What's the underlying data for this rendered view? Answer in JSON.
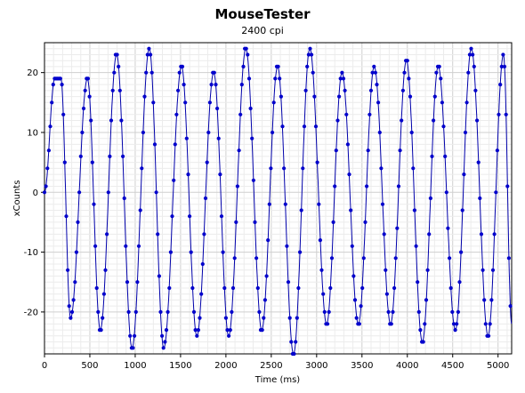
{
  "chart_data": {
    "type": "scatter",
    "title": "MouseTester",
    "subtitle": "2400 cpi",
    "xlabel": "Time (ms)",
    "ylabel": "xCounts",
    "xlim": [
      0,
      5150
    ],
    "ylim": [
      -27,
      25
    ],
    "x_ticks": [
      0,
      500,
      1000,
      1500,
      2000,
      2500,
      3000,
      3500,
      4000,
      4500,
      5000
    ],
    "y_ticks": [
      -20,
      -10,
      0,
      10,
      20
    ],
    "grid": true,
    "point_color": "#0000cc",
    "line_color": "#0000aa",
    "series": [
      {
        "x": [
          0,
          113,
          180,
          288,
          473,
          615,
          795,
          965,
          1155,
          1315,
          1510,
          1680,
          1865,
          2030,
          2220,
          2395,
          2570,
          2745,
          2925,
          3110,
          3280,
          3460,
          3635,
          3815,
          3990,
          4165,
          4340,
          4530,
          4705,
          4890,
          5060,
          5150
        ],
        "y": [
          0,
          19,
          19,
          -21,
          19,
          -23,
          23,
          -26,
          24,
          -26,
          21,
          -24,
          20,
          -24,
          24,
          -23,
          21,
          -27,
          24,
          -22,
          20,
          -22,
          21,
          -22,
          22,
          -25,
          21,
          -23,
          24,
          -24,
          23,
          -22
        ]
      }
    ]
  }
}
